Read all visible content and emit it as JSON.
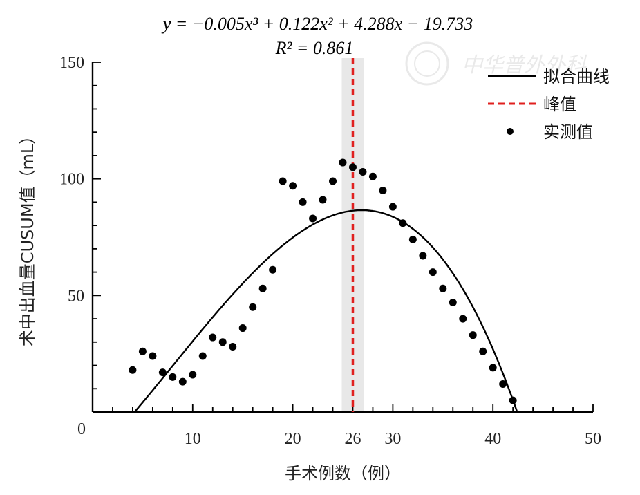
{
  "chart_data": {
    "type": "scatter",
    "equation": "y = −0.005x³ + 0.122x² + 4.288x − 19.733",
    "r2": "R² = 0.861",
    "xlabel": "手术例数（例）",
    "ylabel": "术中出血量CUSUM值（mL）",
    "xlim": [
      0,
      50
    ],
    "ylim": [
      0,
      150
    ],
    "x_ticks": [
      10,
      20,
      30,
      40,
      50
    ],
    "y_ticks": [
      50,
      100,
      150
    ],
    "origin_label": "0",
    "peak_x": 26,
    "peak_label": "26",
    "fit_coefficients": {
      "a3": -0.005,
      "a2": 0.122,
      "a1": 4.288,
      "a0": -19.733
    },
    "legend": [
      {
        "label": "拟合曲线",
        "style": "solid-line",
        "color": "#000000"
      },
      {
        "label": "峰值",
        "style": "dashed-line",
        "color": "#e0201f"
      },
      {
        "label": "实测值",
        "style": "dot",
        "color": "#000000"
      }
    ],
    "legend_position": "top-right",
    "grid": false,
    "series": [
      {
        "name": "实测值",
        "points": [
          [
            4,
            18
          ],
          [
            5,
            26
          ],
          [
            6,
            24
          ],
          [
            7,
            17
          ],
          [
            8,
            15
          ],
          [
            9,
            13
          ],
          [
            10,
            16
          ],
          [
            11,
            24
          ],
          [
            12,
            32
          ],
          [
            13,
            30
          ],
          [
            14,
            28
          ],
          [
            15,
            36
          ],
          [
            16,
            45
          ],
          [
            17,
            53
          ],
          [
            18,
            61
          ],
          [
            19,
            99
          ],
          [
            20,
            97
          ],
          [
            21,
            90
          ],
          [
            22,
            83
          ],
          [
            23,
            91
          ],
          [
            24,
            99
          ],
          [
            25,
            107
          ],
          [
            26,
            105
          ],
          [
            27,
            103
          ],
          [
            28,
            101
          ],
          [
            29,
            95
          ],
          [
            30,
            88
          ],
          [
            31,
            81
          ],
          [
            32,
            74
          ],
          [
            33,
            67
          ],
          [
            34,
            60
          ],
          [
            35,
            53
          ],
          [
            36,
            47
          ],
          [
            37,
            40
          ],
          [
            38,
            33
          ],
          [
            39,
            26
          ],
          [
            40,
            19
          ],
          [
            41,
            12
          ],
          [
            42,
            5
          ]
        ]
      }
    ],
    "colors": {
      "peak": "#e0201f",
      "peak_band": "#d9d9d9",
      "peak_label": "#e05a2a",
      "fit": "#000000",
      "points": "#000000"
    }
  },
  "watermark": {
    "text": "中华普外外科"
  }
}
